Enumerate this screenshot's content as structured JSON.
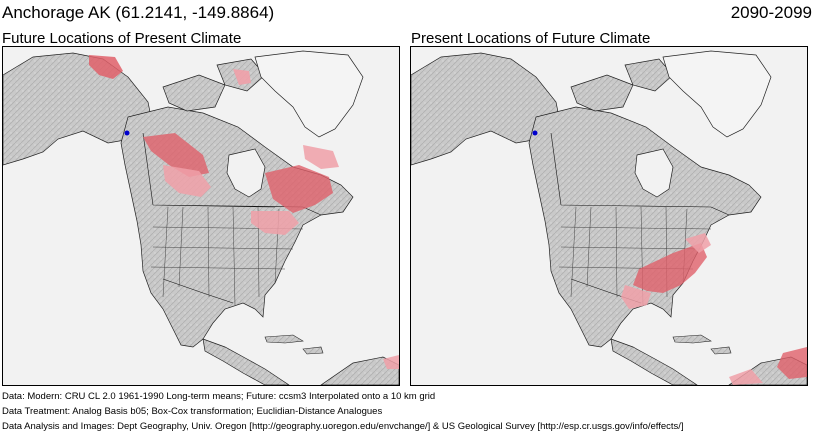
{
  "header": {
    "title": "Anchorage AK  (61.2141, -149.8864)",
    "period": "2090-2099"
  },
  "panels": [
    {
      "subtitle": "Future Locations of Present Climate"
    },
    {
      "subtitle": "Present Locations of Future Climate"
    }
  ],
  "colors": {
    "background": "#f2f2f2",
    "land": "#c9c9c9",
    "snow": "#f4f4f4",
    "borders": "#000000",
    "analog_dark": "#e0606a",
    "analog_light": "#f0a0a8",
    "location_marker": "#0000cc"
  },
  "notes": {
    "data": "Data:  Modern: CRU CL 2.0 1961-1990 Long-term means; Future: ccsm3 Interpolated onto a 10 km grid",
    "treatment": "Data Treatment:  Analog Basis b05; Box-Cox transformation; Euclidian-Distance Analogues",
    "analysis": "Data Analysis and Images:  Dept Geography, Univ. Oregon [http://geography.uoregon.edu/envchange/] & US Geological Survey [http://esp.cr.usgs.gov/info/effects/]"
  }
}
